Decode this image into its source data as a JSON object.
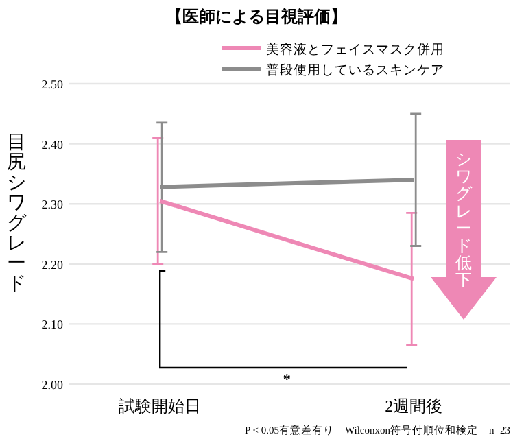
{
  "chart_data": {
    "type": "line",
    "title": "【医師による目視評価】",
    "ylabel": "目尻シワグレード",
    "categories": [
      "試験開始日",
      "2週間後"
    ],
    "series": [
      {
        "name": "美容液とフェイスマスク併用",
        "color": "#ee88b5",
        "values": [
          2.305,
          2.175
        ],
        "errors": [
          [
            2.2,
            2.41
          ],
          [
            2.065,
            2.285
          ]
        ]
      },
      {
        "name": "普段使用しているスキンケア",
        "color": "#8c8c8c",
        "values": [
          2.328,
          2.34
        ],
        "errors": [
          [
            2.22,
            2.435
          ],
          [
            2.23,
            2.45
          ]
        ]
      }
    ],
    "ylim": [
      2.0,
      2.5
    ],
    "yticks": [
      {
        "value": 2.0,
        "label": "2.00"
      },
      {
        "value": 2.1,
        "label": "2.10"
      },
      {
        "value": 2.2,
        "label": "2.20"
      },
      {
        "value": 2.3,
        "label": "2.30"
      },
      {
        "value": 2.4,
        "label": "2.40"
      },
      {
        "value": 2.5,
        "label": "2.50"
      }
    ],
    "grid": "y",
    "legend": "top right",
    "marker": "none",
    "line_style": "solid",
    "annotations": [
      "*",
      "シワグレード低下",
      "P < 0.05有意差有り　Wilconxon符号付順位和検定　n=23"
    ]
  }
}
